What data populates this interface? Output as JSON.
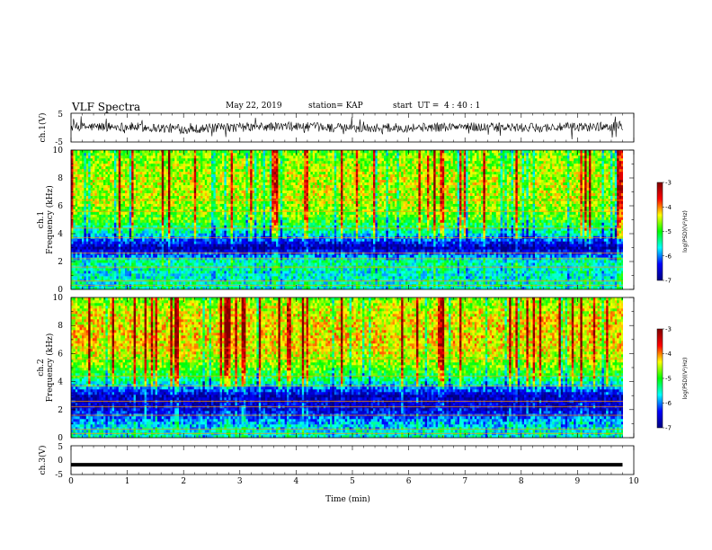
{
  "header": {
    "title": "VLF Spectra",
    "date": "May 22, 2019",
    "station": "station= KAP",
    "start": "start  UT =  4 : 40 : 1"
  },
  "panels": {
    "ch1_wave": {
      "ylabel": "ch.1(V)",
      "yticks": [
        "5",
        "-5"
      ]
    },
    "ch1_spec": {
      "ylabel_line1": "ch.1",
      "ylabel_line2": "Frequency  (kHz)"
    },
    "ch2_spec": {
      "ylabel_line1": "ch.2",
      "ylabel_line2": "Frequency  (kHz)"
    },
    "ch3_wave": {
      "ylabel": "ch.3(V)",
      "yticks": [
        "5",
        "0",
        "-5"
      ]
    }
  },
  "colorbar": {
    "label": "log(PSD)(V²/Hz)",
    "ticks": [
      "-3",
      "-4",
      "-5",
      "-6",
      "-7"
    ],
    "colors": [
      "#7f0000",
      "#ff0000",
      "#ffff00",
      "#00ff00",
      "#00ffff",
      "#0000ff",
      "#000080"
    ]
  },
  "chart_data": [
    {
      "type": "line",
      "panel": "ch.1(V)",
      "ylabel": "ch.1(V)",
      "ylim": [
        -5,
        5
      ],
      "xlim": [
        0,
        10
      ],
      "note_values": "noisy waveform fluctuating around ~0 V",
      "x": [
        0,
        1,
        2,
        3,
        4,
        5,
        6,
        7,
        8,
        9,
        9.8
      ],
      "y": [
        0.2,
        0.3,
        -0.5,
        0.1,
        0.4,
        -0.2,
        0.0,
        0.3,
        -0.1,
        0.2,
        0.5
      ]
    },
    {
      "type": "heatmap",
      "panel": "ch.1",
      "ylabel": "Frequency  (kHz)",
      "xlim": [
        0,
        10
      ],
      "ylim": [
        0,
        10
      ],
      "yticks": [
        "0",
        "2",
        "4",
        "6",
        "8",
        "10"
      ],
      "colorbar": {
        "label": "log(PSD)(V²/Hz)",
        "range": [
          -7,
          -3
        ]
      },
      "freq_bands_kHz": [
        0.5,
        1,
        2,
        3,
        4,
        5,
        6,
        7,
        8,
        9,
        10
      ],
      "band_levels": [
        -5.5,
        -5.6,
        -5.4,
        -6.8,
        -5.6,
        -4.9,
        -4.6,
        -4.5,
        -4.5,
        -4.6,
        -4.8
      ]
    },
    {
      "type": "heatmap",
      "panel": "ch.2",
      "ylabel": "Frequency  (kHz)",
      "xlim": [
        0,
        10
      ],
      "ylim": [
        0,
        10
      ],
      "yticks": [
        "0",
        "2",
        "4",
        "6",
        "8",
        "10"
      ],
      "colorbar": {
        "label": "log(PSD)(V²/Hz)",
        "range": [
          -7,
          -3
        ]
      },
      "freq_bands_kHz": [
        0.5,
        1,
        2,
        3,
        4,
        5,
        6,
        7,
        8,
        9,
        10
      ],
      "band_levels": [
        -5.6,
        -5.8,
        -6.5,
        -6.7,
        -5.4,
        -4.8,
        -4.4,
        -4.3,
        -4.3,
        -4.4,
        -4.7
      ]
    },
    {
      "type": "line",
      "panel": "ch.3(V)",
      "ylabel": "ch.3(V)",
      "xlabel": "Time  (min)",
      "ylim": [
        -5,
        5
      ],
      "xlim": [
        0,
        10
      ],
      "xticks": [
        "0",
        "1",
        "2",
        "3",
        "4",
        "5",
        "6",
        "7",
        "8",
        "9",
        "10"
      ],
      "x": [
        0,
        9.8
      ],
      "y": [
        -1.6,
        -1.6
      ]
    }
  ]
}
